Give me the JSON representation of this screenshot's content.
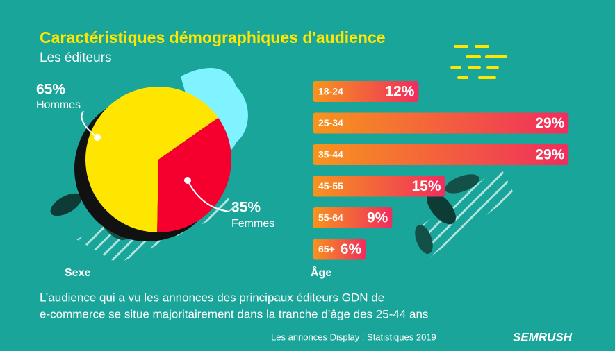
{
  "title": "Caractéristiques démographiques d'audience",
  "subtitle": "Les éditeurs",
  "description": [
    "L’audience qui a vu les annonces des principaux éditeurs GDN de",
    "e-commerce se situe majoritairement dans la tranche d’âge des 25-44 ans"
  ],
  "source": "Les annonces Display : Statistiques 2019",
  "brand": "SEMRUSH",
  "chart_data": [
    {
      "type": "pie",
      "label": "Sexe",
      "categories": [
        "Hommes",
        "Femmes"
      ],
      "values": [
        65,
        35
      ],
      "value_labels": [
        "65%",
        "35%"
      ],
      "colors": [
        "#ffe600",
        "#f5002e"
      ]
    },
    {
      "type": "bar",
      "label": "Âge",
      "categories": [
        "18-24",
        "25-34",
        "35-44",
        "45-55",
        "55-64",
        "65+"
      ],
      "values": [
        12,
        29,
        29,
        15,
        9,
        6
      ],
      "value_labels": [
        "12%",
        "29%",
        "29%",
        "15%",
        "9%",
        "6%"
      ],
      "colors": [
        "#f7941d",
        "#ef2d5e"
      ]
    }
  ]
}
